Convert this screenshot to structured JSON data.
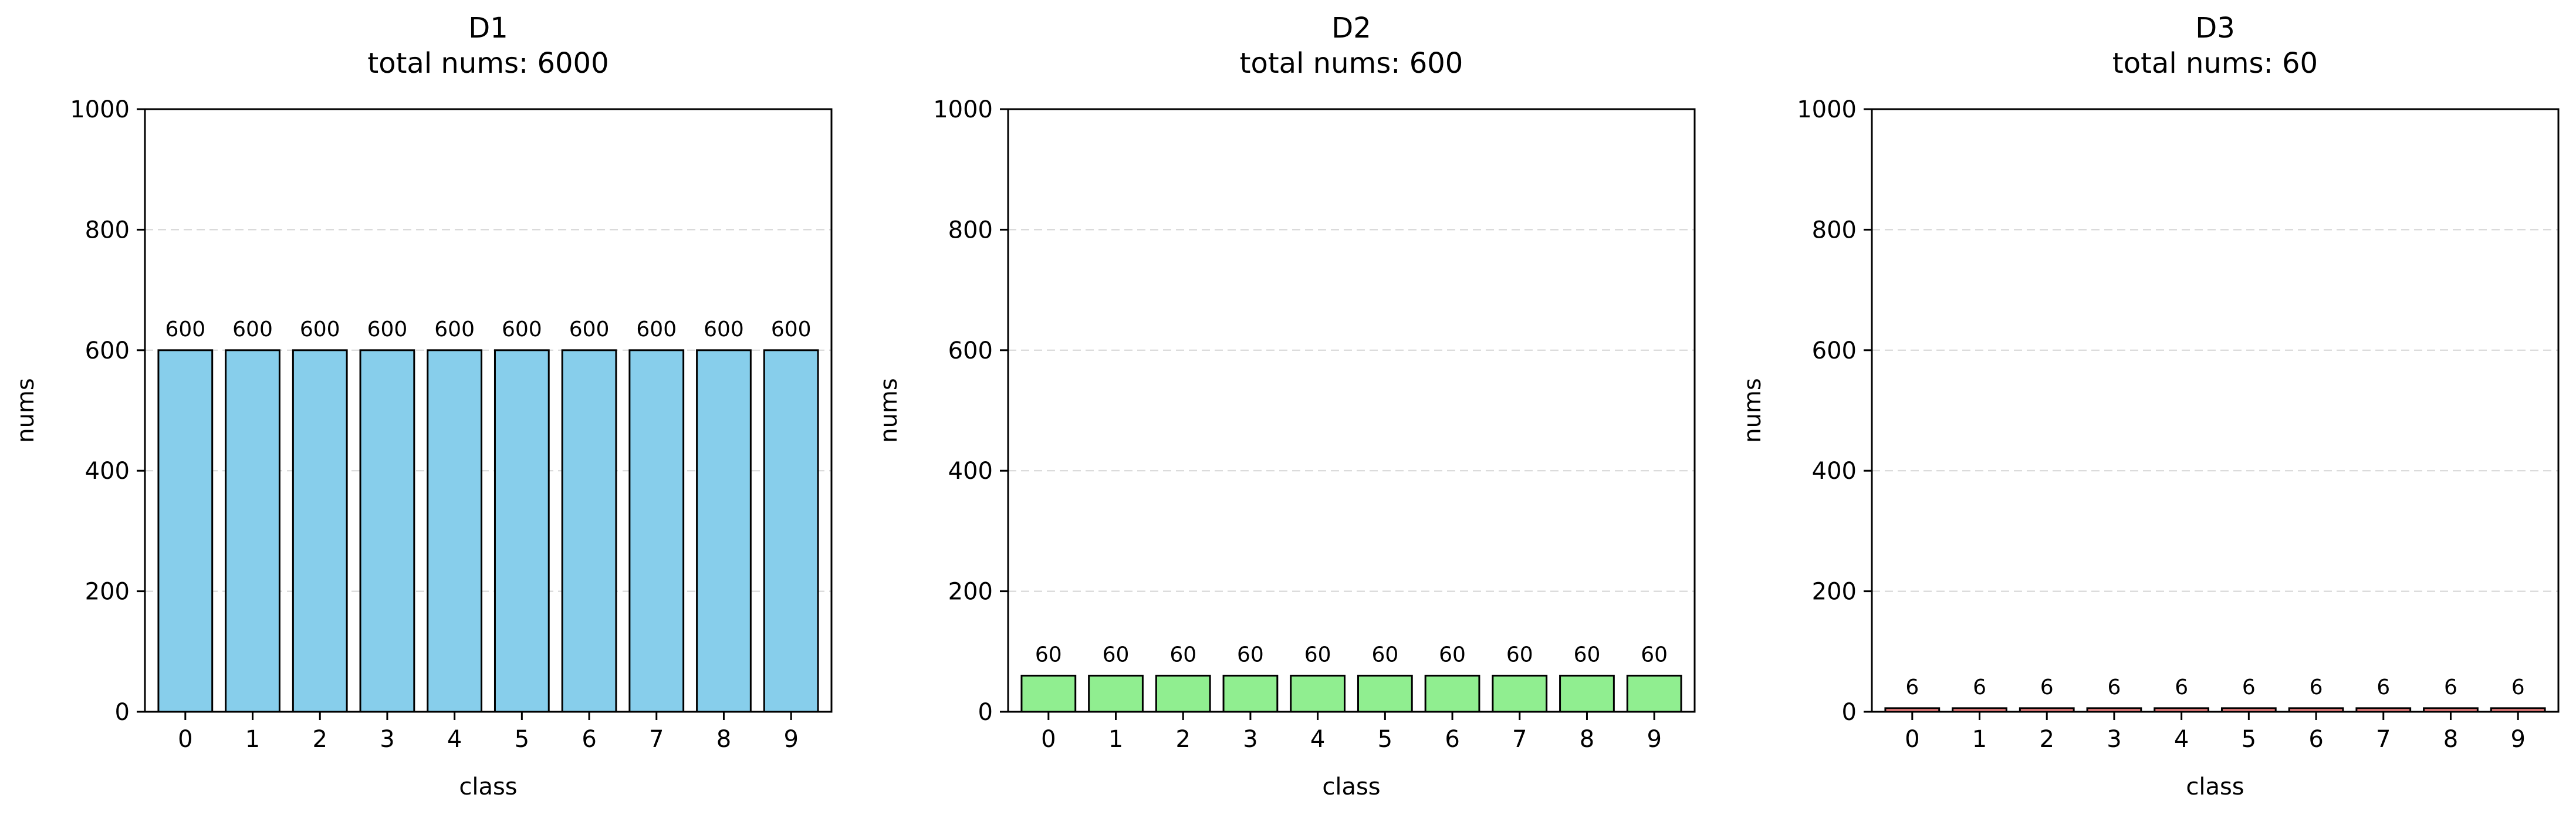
{
  "chart_data": [
    {
      "type": "bar",
      "title": "D1",
      "subtitle": "total nums: 6000",
      "xlabel": "class",
      "ylabel": "nums",
      "categories": [
        "0",
        "1",
        "2",
        "3",
        "4",
        "5",
        "6",
        "7",
        "8",
        "9"
      ],
      "values": [
        600,
        600,
        600,
        600,
        600,
        600,
        600,
        600,
        600,
        600
      ],
      "ylim": [
        0,
        1000
      ],
      "yticks": [
        0,
        200,
        400,
        600,
        800,
        1000
      ],
      "color": "#87ceeb",
      "grid": "y-dashed"
    },
    {
      "type": "bar",
      "title": "D2",
      "subtitle": "total nums: 600",
      "xlabel": "class",
      "ylabel": "nums",
      "categories": [
        "0",
        "1",
        "2",
        "3",
        "4",
        "5",
        "6",
        "7",
        "8",
        "9"
      ],
      "values": [
        60,
        60,
        60,
        60,
        60,
        60,
        60,
        60,
        60,
        60
      ],
      "ylim": [
        0,
        1000
      ],
      "yticks": [
        0,
        200,
        400,
        600,
        800,
        1000
      ],
      "color": "#90ee90",
      "grid": "y-dashed"
    },
    {
      "type": "bar",
      "title": "D3",
      "subtitle": "total nums: 60",
      "xlabel": "class",
      "ylabel": "nums",
      "categories": [
        "0",
        "1",
        "2",
        "3",
        "4",
        "5",
        "6",
        "7",
        "8",
        "9"
      ],
      "values": [
        6,
        6,
        6,
        6,
        6,
        6,
        6,
        6,
        6,
        6
      ],
      "ylim": [
        0,
        1000
      ],
      "yticks": [
        0,
        200,
        400,
        600,
        800,
        1000
      ],
      "color": "#f08080",
      "grid": "y-dashed"
    }
  ]
}
